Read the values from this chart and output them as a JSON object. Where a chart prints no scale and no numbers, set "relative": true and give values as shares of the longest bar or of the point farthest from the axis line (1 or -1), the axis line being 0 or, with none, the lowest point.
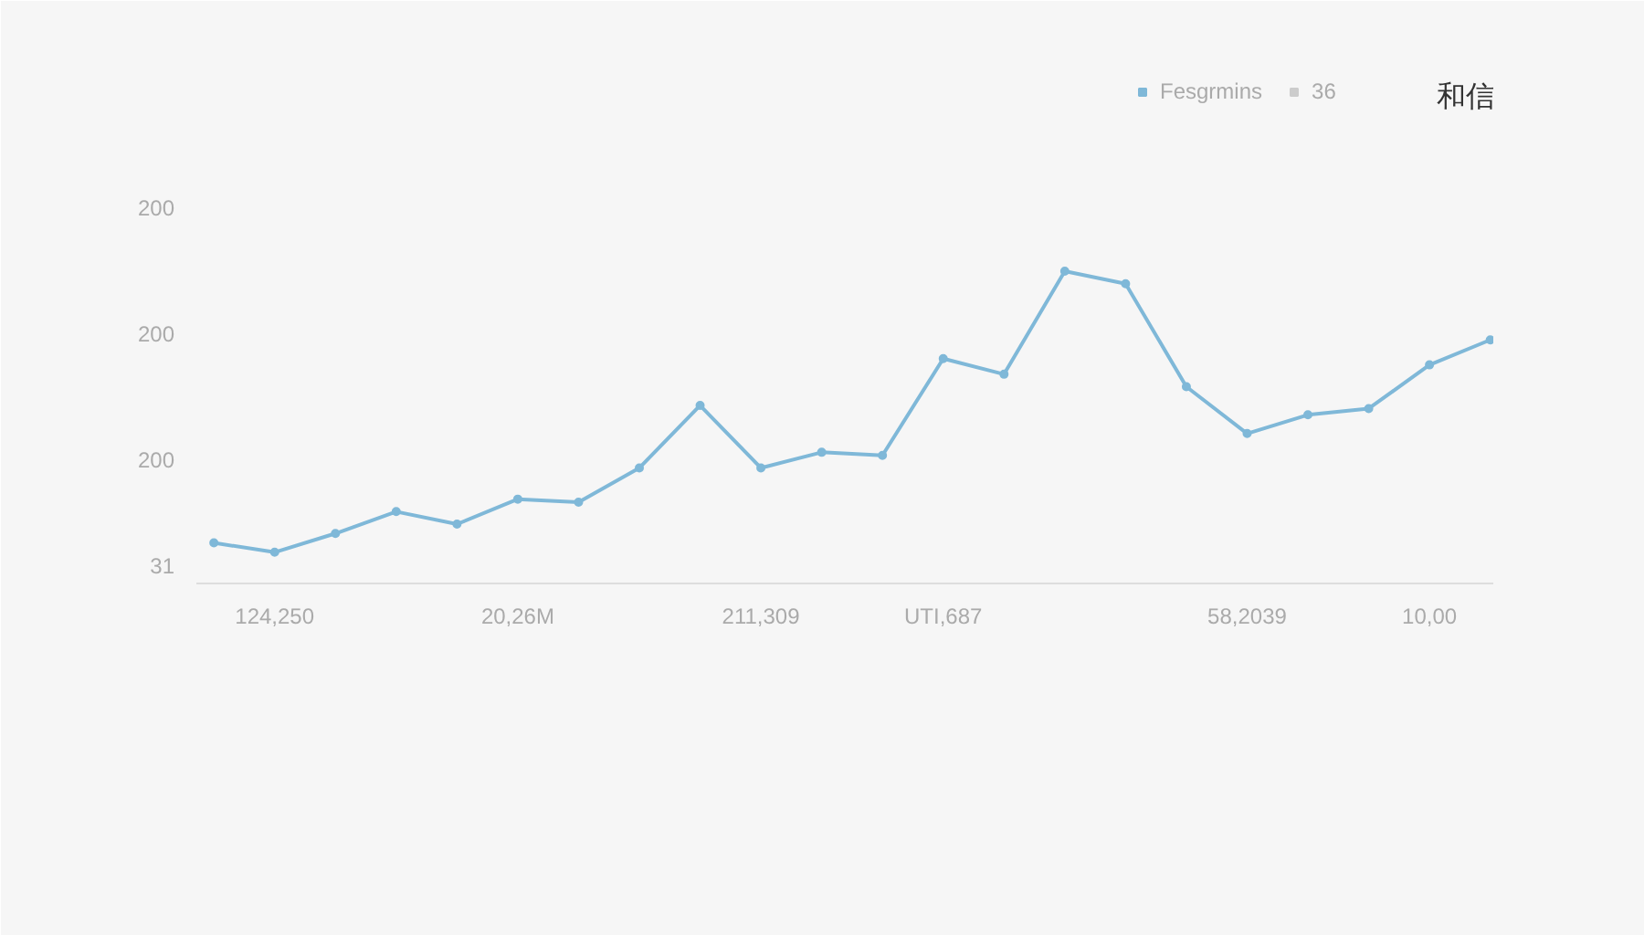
{
  "chart_data": {
    "type": "line",
    "relative": true,
    "legend": "top right",
    "marker": "circle",
    "line_style": "solid",
    "annotations": [
      "和信",
      "200",
      "200",
      "200",
      "31"
    ],
    "categories": [
      null,
      "124,250",
      null,
      null,
      null,
      "20,26M",
      null,
      null,
      null,
      "211,309",
      null,
      null,
      "UTI,687",
      null,
      null,
      null,
      null,
      "58,2039",
      null,
      null,
      "10,00",
      null
    ],
    "series": [
      {
        "name": "Fesgrmins",
        "color": "#7fb8d8",
        "values": [
          0.13,
          0.1,
          0.16,
          0.23,
          0.19,
          0.27,
          0.26,
          0.37,
          0.57,
          0.37,
          0.42,
          0.41,
          0.72,
          0.67,
          1,
          0.96,
          0.63,
          0.48,
          0.54,
          0.56,
          0.7,
          0.78
        ]
      },
      {
        "name": "36",
        "color": "#cccccc",
        "values": [
          null,
          null,
          null,
          null,
          null,
          null,
          null,
          null,
          null,
          null,
          null,
          null,
          null,
          null,
          null,
          null,
          null,
          null,
          null,
          null,
          null,
          null
        ]
      }
    ]
  }
}
